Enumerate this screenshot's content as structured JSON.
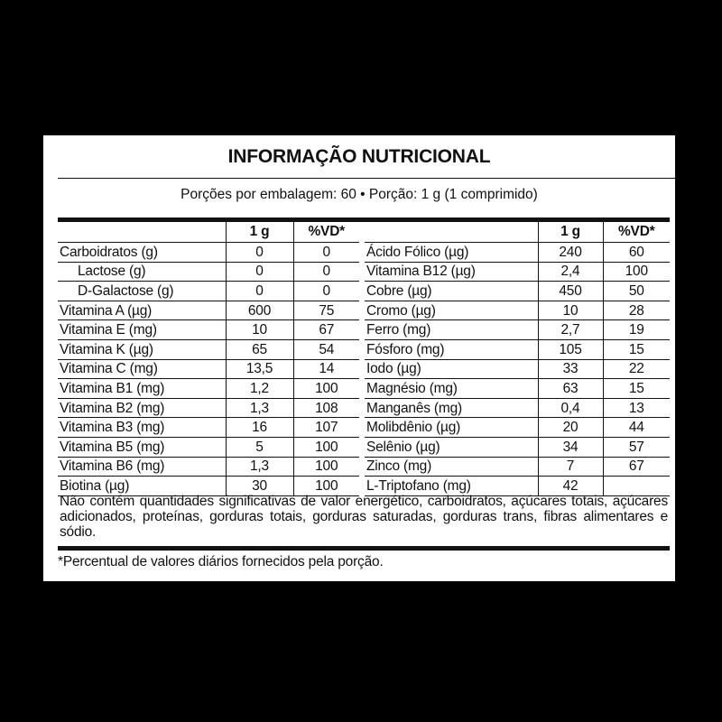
{
  "title": "INFORMAÇÃO NUTRICIONAL",
  "serving": "Porções por embalagem: 60 • Porção: 1 g (1 comprimido)",
  "columns": {
    "amount": "1 g",
    "dv": "%VD*"
  },
  "left_rows": [
    {
      "label": "Carboidratos (g)",
      "amount": "0",
      "dv": "0",
      "indent": false
    },
    {
      "label": "Lactose (g)",
      "amount": "0",
      "dv": "0",
      "indent": true
    },
    {
      "label": "D-Galactose (g)",
      "amount": "0",
      "dv": "0",
      "indent": true
    },
    {
      "label": "Vitamina A (µg)",
      "amount": "600",
      "dv": "75",
      "indent": false
    },
    {
      "label": "Vitamina E (mg)",
      "amount": "10",
      "dv": "67",
      "indent": false
    },
    {
      "label": "Vitamina K (µg)",
      "amount": "65",
      "dv": "54",
      "indent": false
    },
    {
      "label": "Vitamina C (mg)",
      "amount": "13,5",
      "dv": "14",
      "indent": false
    },
    {
      "label": "Vitamina B1 (mg)",
      "amount": "1,2",
      "dv": "100",
      "indent": false
    },
    {
      "label": "Vitamina B2 (mg)",
      "amount": "1,3",
      "dv": "108",
      "indent": false
    },
    {
      "label": "Vitamina B3 (mg)",
      "amount": "16",
      "dv": "107",
      "indent": false
    },
    {
      "label": "Vitamina B5 (mg)",
      "amount": "5",
      "dv": "100",
      "indent": false
    },
    {
      "label": "Vitamina B6 (mg)",
      "amount": "1,3",
      "dv": "100",
      "indent": false
    },
    {
      "label": "Biotina (µg)",
      "amount": "30",
      "dv": "100",
      "indent": false
    }
  ],
  "right_rows": [
    {
      "label": "Ácido Fólico (µg)",
      "amount": "240",
      "dv": "60"
    },
    {
      "label": "Vitamina B12 (µg)",
      "amount": "2,4",
      "dv": "100"
    },
    {
      "label": "Cobre (µg)",
      "amount": "450",
      "dv": "50"
    },
    {
      "label": "Cromo (µg)",
      "amount": "10",
      "dv": "28"
    },
    {
      "label": "Ferro (mg)",
      "amount": "2,7",
      "dv": "19"
    },
    {
      "label": "Fósforo (mg)",
      "amount": "105",
      "dv": "15"
    },
    {
      "label": "Iodo (µg)",
      "amount": "33",
      "dv": "22"
    },
    {
      "label": "Magnésio (mg)",
      "amount": "63",
      "dv": "15"
    },
    {
      "label": "Manganês (mg)",
      "amount": "0,4",
      "dv": "13"
    },
    {
      "label": "Molibdênio (µg)",
      "amount": "20",
      "dv": "44"
    },
    {
      "label": "Selênio (µg)",
      "amount": "34",
      "dv": "57"
    },
    {
      "label": "Zinco (mg)",
      "amount": "7",
      "dv": "67"
    },
    {
      "label": "L-Triptofano (mg)",
      "amount": "42",
      "dv": ""
    }
  ],
  "note": "Não contém quantidades significativas de valor energético, carboidratos, açúcares totais, açúcares adicionados, proteínas, gorduras totais, gorduras saturadas, gorduras trans, fibras alimentares e sódio.",
  "footnote": "*Percentual de valores diários fornecidos pela porção."
}
